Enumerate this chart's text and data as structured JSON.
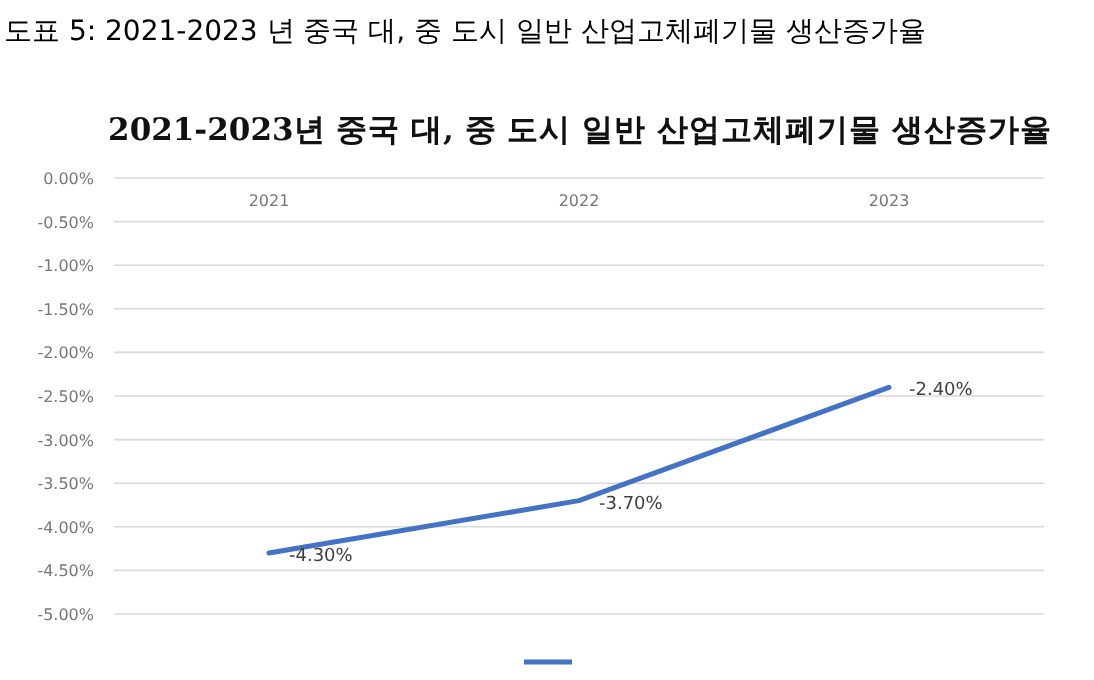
{
  "chart_data": {
    "type": "line",
    "title": "도표 5: 2021-2023 년 중국 대, 중 도시 일반 산업고체폐기물 생산증가율",
    "subtitle": "2021-2023년 중국 대, 중 도시 일반 산업고체폐기물 생산증가율",
    "categories": [
      "2021",
      "2022",
      "2023"
    ],
    "series": [
      {
        "color": "#4472c4",
        "values": [
          -4.3,
          -3.7,
          -2.4
        ],
        "value_labels": [
          "-4.30%",
          "-3.70%",
          "-2.40%"
        ]
      }
    ],
    "ylim": [
      -5,
      0
    ],
    "yticks": [
      {
        "value": 0,
        "label": "0.00%"
      },
      {
        "value": -0.5,
        "label": "-0.50%"
      },
      {
        "value": -1,
        "label": "-1.00%"
      },
      {
        "value": -1.5,
        "label": "-1.50%"
      },
      {
        "value": -2,
        "label": "-2.00%"
      },
      {
        "value": -2.5,
        "label": "-2.50%"
      },
      {
        "value": -3,
        "label": "-3.00%"
      },
      {
        "value": -3.5,
        "label": "-3.50%"
      },
      {
        "value": -4,
        "label": "-4.00%"
      },
      {
        "value": -4.5,
        "label": "-4.50%"
      },
      {
        "value": -5,
        "label": "-5.00%"
      }
    ],
    "grid": "y",
    "marker": "none",
    "line_style": "solid"
  }
}
